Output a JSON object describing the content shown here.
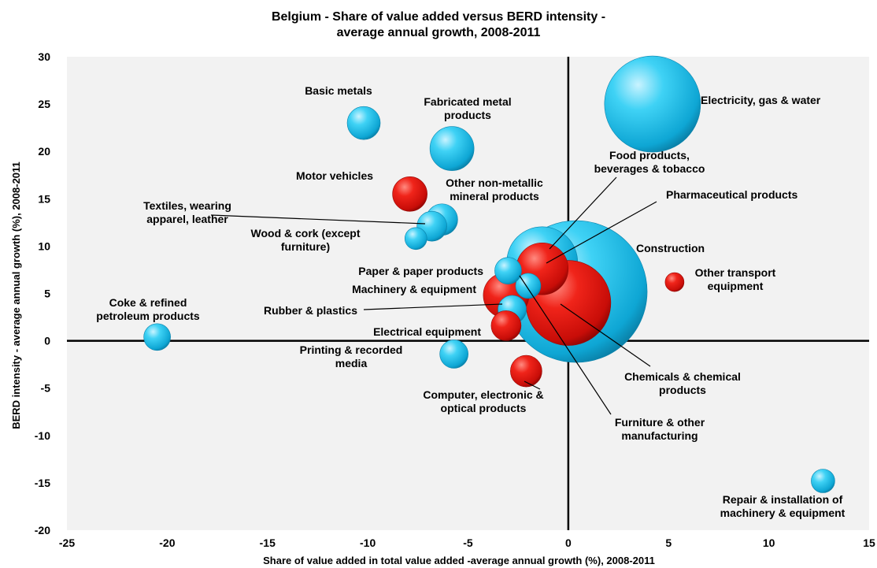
{
  "chart_data": {
    "type": "scatter",
    "subtype": "bubble",
    "title_lines": [
      "Belgium - Share of value added versus BERD intensity -",
      "average annual growth, 2008-2011"
    ],
    "xlabel": "Share of value added in total value added -average annual growth (%),  2008-2011",
    "ylabel": "BERD intensity - average annual growth (%),  2008-2011",
    "xlim": [
      -25,
      15
    ],
    "ylim": [
      -20,
      30
    ],
    "xticks": [
      -25,
      -20,
      -15,
      -10,
      -5,
      0,
      5,
      10,
      15
    ],
    "yticks": [
      -20,
      -15,
      -10,
      -5,
      0,
      5,
      10,
      15,
      20,
      25,
      30
    ],
    "grid": false,
    "legend": "none",
    "colors": {
      "blue": "#19c4ee",
      "red": "#e8140e",
      "plot_bg": "#f2f2f2"
    },
    "points": [
      {
        "name": "Electricity, gas & water",
        "label_lines": [
          "Electricity, gas & water"
        ],
        "x": 4.2,
        "y": 25.0,
        "color": "blue"
      },
      {
        "name": "Basic metals",
        "label_lines": [
          "Basic metals"
        ],
        "x": -10.2,
        "y": 23.0,
        "color": "blue"
      },
      {
        "name": "Fabricated metal products",
        "label_lines": [
          "Fabricated metal",
          "products"
        ],
        "x": -5.8,
        "y": 20.3,
        "color": "blue"
      },
      {
        "name": "Motor vehicles",
        "label_lines": [
          "Motor vehicles"
        ],
        "x": -7.9,
        "y": 15.5,
        "color": "red"
      },
      {
        "name": "Other non-metallic mineral products",
        "label_lines": [
          "Other non-metallic",
          "mineral products"
        ],
        "x": -6.3,
        "y": 12.8,
        "color": "blue"
      },
      {
        "name": "Textiles, wearing apparel, leather",
        "label_lines": [
          "Textiles, wearing",
          "apparel, leather"
        ],
        "x": -6.8,
        "y": 12.1,
        "color": "blue"
      },
      {
        "name": "Wood & cork (except furniture)",
        "label_lines": [
          "Wood & cork (except",
          "furniture)"
        ],
        "x": -7.6,
        "y": 10.8,
        "color": "blue"
      },
      {
        "name": "Food products, beverages & tobacco",
        "label_lines": [
          "Food  products,",
          "beverages & tobacco"
        ],
        "x": -1.3,
        "y": 8.3,
        "color": "blue"
      },
      {
        "name": "Pharmaceutical products",
        "label_lines": [
          "Pharmaceutical products"
        ],
        "x": -1.3,
        "y": 7.6,
        "color": "red"
      },
      {
        "name": "Construction",
        "label_lines": [
          "Construction"
        ],
        "x": 0.4,
        "y": 5.2,
        "color": "blue"
      },
      {
        "name": "Chemicals & chemical products",
        "label_lines": [
          "Chemicals & chemical",
          "products"
        ],
        "x": 0.0,
        "y": 4.0,
        "color": "red"
      },
      {
        "name": "Paper & paper products",
        "label_lines": [
          "Paper & paper products"
        ],
        "x": -3.0,
        "y": 7.4,
        "color": "blue"
      },
      {
        "name": "Machinery & equipment",
        "label_lines": [
          "Machinery & equipment"
        ],
        "x": -3.1,
        "y": 4.8,
        "color": "red"
      },
      {
        "name": "Furniture & other manufacturing",
        "label_lines": [
          "Furniture & other",
          "manufacturing"
        ],
        "x": -2.0,
        "y": 5.8,
        "color": "blue"
      },
      {
        "name": "Rubber & plastics",
        "label_lines": [
          "Rubber & plastics"
        ],
        "x": -2.8,
        "y": 3.3,
        "color": "blue"
      },
      {
        "name": "Electrical equipment",
        "label_lines": [
          "Electrical equipment"
        ],
        "x": -3.1,
        "y": 1.6,
        "color": "red"
      },
      {
        "name": "Other transport equipment",
        "label_lines": [
          "Other transport",
          "equipment"
        ],
        "x": 5.3,
        "y": 6.2,
        "color": "red"
      },
      {
        "name": "Coke & refined petroleum products",
        "label_lines": [
          "Coke & refined",
          "petroleum products"
        ],
        "x": -20.5,
        "y": 0.4,
        "color": "blue"
      },
      {
        "name": "Printing & recorded media",
        "label_lines": [
          "Printing & recorded",
          "media"
        ],
        "x": -5.7,
        "y": -1.4,
        "color": "blue"
      },
      {
        "name": "Computer, electronic & optical products",
        "label_lines": [
          "Computer, electronic &",
          "optical products"
        ],
        "x": -2.1,
        "y": -3.2,
        "color": "red"
      },
      {
        "name": "Repair & installation of machinery & equipment",
        "label_lines": [
          "Repair & installation of",
          "machinery & equipment"
        ],
        "x": 12.7,
        "y": -14.8,
        "color": "blue"
      }
    ]
  }
}
